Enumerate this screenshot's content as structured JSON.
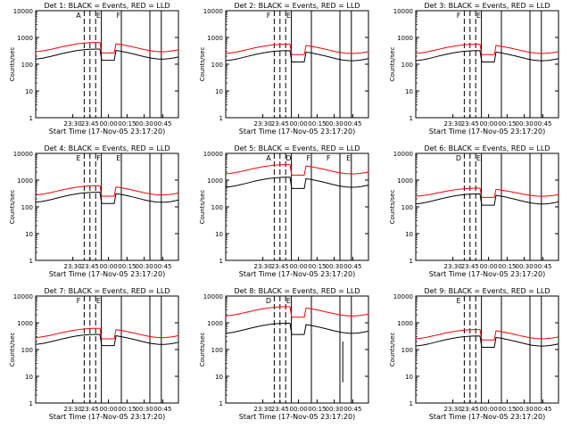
{
  "chart_data": {
    "type": "line",
    "xtick_labels": [
      "23:30",
      "23:45",
      "00:00",
      "00:15",
      "00:30",
      "00:45"
    ],
    "xlabel": "Start Time (17-Nov-05 23:17:20)",
    "ylabel": "Counts/sec",
    "ytick_labels": [
      "1",
      "10",
      "100",
      "1000",
      "10000"
    ],
    "yscale": "log",
    "ylim": [
      1,
      10000
    ],
    "series_colors": {
      "events": "#000000",
      "lld": "#ff0000"
    },
    "panels": [
      {
        "title": "Det 1: BLACK = Events, RED = LLD",
        "markers": [
          "A",
          "E",
          "F"
        ],
        "red_peak": 650,
        "black_peak": 230,
        "dip": 0
      },
      {
        "title": "Det 2: BLACK = Events, RED = LLD",
        "markers": [
          "F",
          "E"
        ],
        "red_peak": 560,
        "black_peak": 200,
        "dip": 0
      },
      {
        "title": "Det 3: BLACK = Events, RED = LLD",
        "markers": [
          "F",
          "E"
        ],
        "red_peak": 560,
        "black_peak": 200,
        "dip": 0
      },
      {
        "title": "Det 4: BLACK = Events, RED = LLD",
        "markers": [
          "E",
          "F",
          "E"
        ],
        "red_peak": 620,
        "black_peak": 220,
        "dip": 0
      },
      {
        "title": "Det 5: BLACK = Events, RED = LLD",
        "markers": [
          "A",
          "D",
          "F",
          "F",
          "E"
        ],
        "red_peak": 3800,
        "black_peak": 800,
        "dip": 0
      },
      {
        "title": "Det 6: BLACK = Events, RED = LLD",
        "markers": [
          "D",
          "E"
        ],
        "red_peak": 500,
        "black_peak": 190,
        "dip": 0
      },
      {
        "title": "Det 7: BLACK = Events, RED = LLD",
        "markers": [
          "F",
          "E"
        ],
        "red_peak": 620,
        "black_peak": 230,
        "dip": 0
      },
      {
        "title": "Det 8: BLACK = Events, RED = LLD",
        "markers": [
          "D",
          "E"
        ],
        "red_peak": 4000,
        "black_peak": 600,
        "dip": 6
      },
      {
        "title": "Det 9: BLACK = Events, RED = LLD",
        "markers": [
          "E"
        ],
        "red_peak": 560,
        "black_peak": 200,
        "dip": 0
      }
    ]
  }
}
